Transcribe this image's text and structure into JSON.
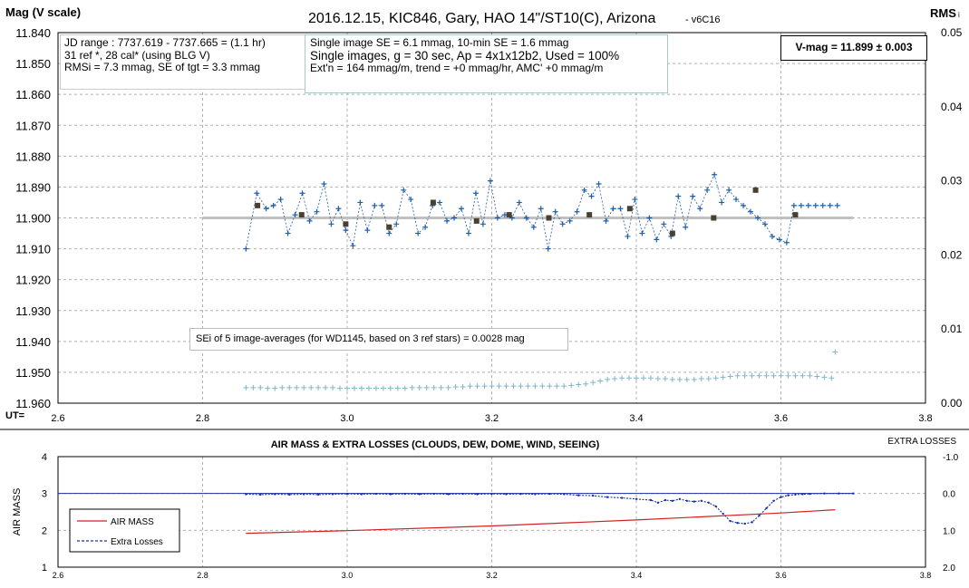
{
  "header": {
    "title": "2016.12.15,  KIC846, Gary, HAO 14\"/ST10(C), Arizona",
    "version": "- v6C16",
    "y_left_label": "Mag (V scale)",
    "y_right_label": "RMS",
    "y_right_label_sub": "i",
    "x_label_prefix": "UT="
  },
  "info_left": {
    "line1": "JD range  : 7737.619 - 7737.665  = (1.1 hr)",
    "line2": "31 ref *, 28 cal* (using BLG V)",
    "line3": "RMSi = 7.3 mmag, SE of tgt = 3.3 mmag"
  },
  "info_mid": {
    "line1": "Single image SE = 6.1 mmag, 10-min SE = 1.6 mmag",
    "line2a": "Single images, ",
    "line2b": "g = 30 sec, Ap = 4x1x12b2,  Used = 100%",
    "line3": "Ext'n = 164  mmag/m, trend = +0 mmag/hr, AMC' +0 mmag/m"
  },
  "vmag_box": {
    "text": "V-mag = 11.899 ± 0.003"
  },
  "sei_box": {
    "text": "SEi of 5 image-averages (for WD1145, based on 3 ref stars) = 0.0028 mag"
  },
  "bottom": {
    "title": "AIR MASS & EXTRA LOSSES (CLOUDS, DEW, DOME, WIND, SEEING)",
    "y_left_label": "AIR MASS",
    "y_right_label": "EXTRA LOSSES",
    "legend_airmass": "AIR MASS",
    "legend_losses": "Extra Losses"
  },
  "colors": {
    "mag_points": "#1f5fa8",
    "avg_points": "#4a4030",
    "rms_points": "#7fb5c8",
    "ref_line": "#c0c0c0",
    "airmass": "#d42020",
    "losses": "#1a2ea0",
    "grid": "#b0b0b0"
  },
  "chart_data": [
    {
      "type": "scatter",
      "xlim": [
        2.6,
        3.8
      ],
      "xticks": [
        "2.6",
        "2.8",
        "3.0",
        "3.2",
        "3.4",
        "3.6",
        "3.8"
      ],
      "ylim": [
        11.84,
        11.96
      ],
      "y_inverted": true,
      "yticks": [
        "11.840",
        "11.850",
        "11.860",
        "11.870",
        "11.880",
        "11.890",
        "11.900",
        "11.910",
        "11.920",
        "11.930",
        "11.940",
        "11.950",
        "11.960"
      ],
      "y2lim": [
        0,
        0.05
      ],
      "y2ticks": [
        "0.00",
        "0.01",
        "0.02",
        "0.03",
        "0.04",
        "0.05"
      ],
      "grid": true,
      "reference_line": {
        "y": 11.9,
        "x": [
          2.8,
          3.7
        ]
      },
      "series": [
        {
          "x": [
            2.86,
            2.875,
            2.888,
            2.898,
            2.908,
            2.918,
            2.928,
            2.938,
            2.948,
            2.958,
            2.968,
            2.978,
            2.988,
            2.998,
            3.008,
            3.018,
            3.028,
            3.038,
            3.048,
            3.058,
            3.068,
            3.078,
            3.088,
            3.098,
            3.108,
            3.118,
            3.128,
            3.138,
            3.148,
            3.158,
            3.168,
            3.178,
            3.188,
            3.198,
            3.208,
            3.218,
            3.228,
            3.238,
            3.248,
            3.258,
            3.268,
            3.278,
            3.288,
            3.298,
            3.308,
            3.318,
            3.328,
            3.338,
            3.348,
            3.358,
            3.368,
            3.378,
            3.388,
            3.398,
            3.408,
            3.418,
            3.428,
            3.438,
            3.448,
            3.458,
            3.468,
            3.478,
            3.488,
            3.498,
            3.508,
            3.518,
            3.528,
            3.538,
            3.548,
            3.558,
            3.568,
            3.578,
            3.588,
            3.598,
            3.608,
            3.618,
            3.628,
            3.638,
            3.648,
            3.658,
            3.668,
            3.678
          ],
          "y": [
            11.91,
            11.892,
            11.897,
            11.896,
            11.894,
            11.905,
            11.899,
            11.892,
            11.901,
            11.898,
            11.889,
            11.902,
            11.897,
            11.904,
            11.909,
            11.895,
            11.904,
            11.896,
            11.896,
            11.905,
            11.902,
            11.891,
            11.894,
            11.905,
            11.903,
            11.896,
            11.895,
            11.901,
            11.9,
            11.897,
            11.905,
            11.892,
            11.902,
            11.888,
            11.9,
            11.899,
            11.9,
            11.895,
            11.9,
            11.903,
            11.897,
            11.91,
            11.898,
            11.902,
            11.901,
            11.898,
            11.891,
            11.893,
            11.889,
            11.901,
            11.897,
            11.897,
            11.906,
            11.894,
            11.905,
            11.9,
            11.907,
            11.902,
            11.906,
            11.893,
            11.903,
            11.893,
            11.897,
            11.891,
            11.886,
            11.895,
            11.891,
            11.894,
            11.896,
            11.898,
            11.9,
            11.902,
            11.906,
            11.907,
            11.908,
            11.896,
            11.896,
            11.896,
            11.896,
            11.896,
            11.896,
            11.896
          ]
        },
        {
          "x": [
            2.876,
            2.937,
            2.998,
            3.058,
            3.119,
            3.179,
            3.224,
            3.279,
            3.335,
            3.391,
            3.45,
            3.507,
            3.565,
            3.62
          ],
          "y": [
            11.896,
            11.899,
            11.902,
            11.903,
            11.895,
            11.901,
            11.899,
            11.9,
            11.899,
            11.897,
            11.905,
            11.9,
            11.891,
            11.899
          ]
        },
        {
          "axis": "y2",
          "x": [
            2.86,
            2.87,
            2.88,
            2.89,
            2.9,
            2.91,
            2.92,
            2.93,
            2.94,
            2.95,
            2.96,
            2.97,
            2.98,
            2.99,
            3.0,
            3.01,
            3.02,
            3.03,
            3.04,
            3.05,
            3.06,
            3.07,
            3.08,
            3.09,
            3.1,
            3.11,
            3.12,
            3.13,
            3.14,
            3.15,
            3.16,
            3.17,
            3.18,
            3.19,
            3.2,
            3.21,
            3.22,
            3.23,
            3.24,
            3.25,
            3.26,
            3.27,
            3.28,
            3.29,
            3.3,
            3.31,
            3.32,
            3.33,
            3.34,
            3.35,
            3.36,
            3.37,
            3.38,
            3.39,
            3.4,
            3.41,
            3.42,
            3.43,
            3.44,
            3.45,
            3.46,
            3.47,
            3.48,
            3.49,
            3.5,
            3.51,
            3.52,
            3.53,
            3.54,
            3.55,
            3.56,
            3.57,
            3.58,
            3.59,
            3.6,
            3.61,
            3.62,
            3.63,
            3.64,
            3.65,
            3.66,
            3.67,
            3.675
          ],
          "y": [
            0.0021,
            0.0021,
            0.0021,
            0.002,
            0.002,
            0.0021,
            0.0021,
            0.0021,
            0.0021,
            0.0021,
            0.0021,
            0.0021,
            0.0021,
            0.002,
            0.002,
            0.002,
            0.002,
            0.002,
            0.002,
            0.002,
            0.002,
            0.002,
            0.002,
            0.0021,
            0.0021,
            0.0021,
            0.0021,
            0.0021,
            0.0021,
            0.0022,
            0.0022,
            0.0023,
            0.0023,
            0.0023,
            0.0023,
            0.0023,
            0.0023,
            0.0023,
            0.0023,
            0.0023,
            0.0023,
            0.0023,
            0.0023,
            0.0023,
            0.0023,
            0.0024,
            0.0025,
            0.0026,
            0.0028,
            0.003,
            0.0032,
            0.0033,
            0.0034,
            0.0034,
            0.0034,
            0.0034,
            0.0034,
            0.0033,
            0.0033,
            0.0032,
            0.0032,
            0.0032,
            0.0032,
            0.0033,
            0.0033,
            0.0034,
            0.0035,
            0.0036,
            0.0037,
            0.0037,
            0.0037,
            0.0037,
            0.0037,
            0.0037,
            0.0037,
            0.0037,
            0.0037,
            0.0037,
            0.0037,
            0.0036,
            0.0035,
            0.0034,
            0.0069
          ]
        }
      ]
    },
    {
      "type": "line",
      "title": "AIR MASS & EXTRA LOSSES (CLOUDS, DEW, DOME, WIND, SEEING)",
      "xlim": [
        2.6,
        3.8
      ],
      "xticks": [
        "2.6",
        "2.8",
        "3.0",
        "3.2",
        "3.4",
        "3.6",
        "3.8"
      ],
      "ylim": [
        1,
        4
      ],
      "yticks": [
        "1",
        "2",
        "3",
        "4"
      ],
      "y2lim": [
        -1,
        2
      ],
      "y2_inverted": true,
      "y2ticks": [
        "-1.0",
        "0.0",
        "1.0",
        "2.0"
      ],
      "legend": "bottom-left",
      "series": [
        {
          "name": "AIR MASS",
          "x": [
            2.86,
            3.0,
            3.2,
            3.4,
            3.6,
            3.675
          ],
          "y": [
            1.92,
            1.99,
            2.12,
            2.28,
            2.47,
            2.56
          ]
        },
        {
          "name": "Extra Losses",
          "axis": "y2",
          "x": [
            2.86,
            2.88,
            2.9,
            2.92,
            2.94,
            2.96,
            2.98,
            3.0,
            3.02,
            3.04,
            3.06,
            3.08,
            3.1,
            3.12,
            3.14,
            3.16,
            3.18,
            3.2,
            3.22,
            3.24,
            3.26,
            3.28,
            3.3,
            3.32,
            3.34,
            3.36,
            3.38,
            3.4,
            3.42,
            3.43,
            3.44,
            3.45,
            3.46,
            3.47,
            3.48,
            3.49,
            3.5,
            3.51,
            3.52,
            3.53,
            3.54,
            3.55,
            3.56,
            3.57,
            3.58,
            3.59,
            3.6,
            3.61,
            3.62,
            3.63,
            3.64,
            3.66,
            3.68,
            3.7
          ],
          "y": [
            0.02,
            0.03,
            0.02,
            0.03,
            0.02,
            0.03,
            0.02,
            0.01,
            0.02,
            0.01,
            0.02,
            0.01,
            0.02,
            0.01,
            0.02,
            0.01,
            0.02,
            0.01,
            0.02,
            0.01,
            0.02,
            0.01,
            0.02,
            0.05,
            0.06,
            0.1,
            0.12,
            0.15,
            0.18,
            0.25,
            0.18,
            0.2,
            0.15,
            0.2,
            0.22,
            0.2,
            0.25,
            0.35,
            0.55,
            0.75,
            0.8,
            0.82,
            0.78,
            0.6,
            0.4,
            0.2,
            0.1,
            0.05,
            0.03,
            0.02,
            0.01,
            0.0,
            0.0,
            0.0
          ]
        }
      ]
    }
  ]
}
